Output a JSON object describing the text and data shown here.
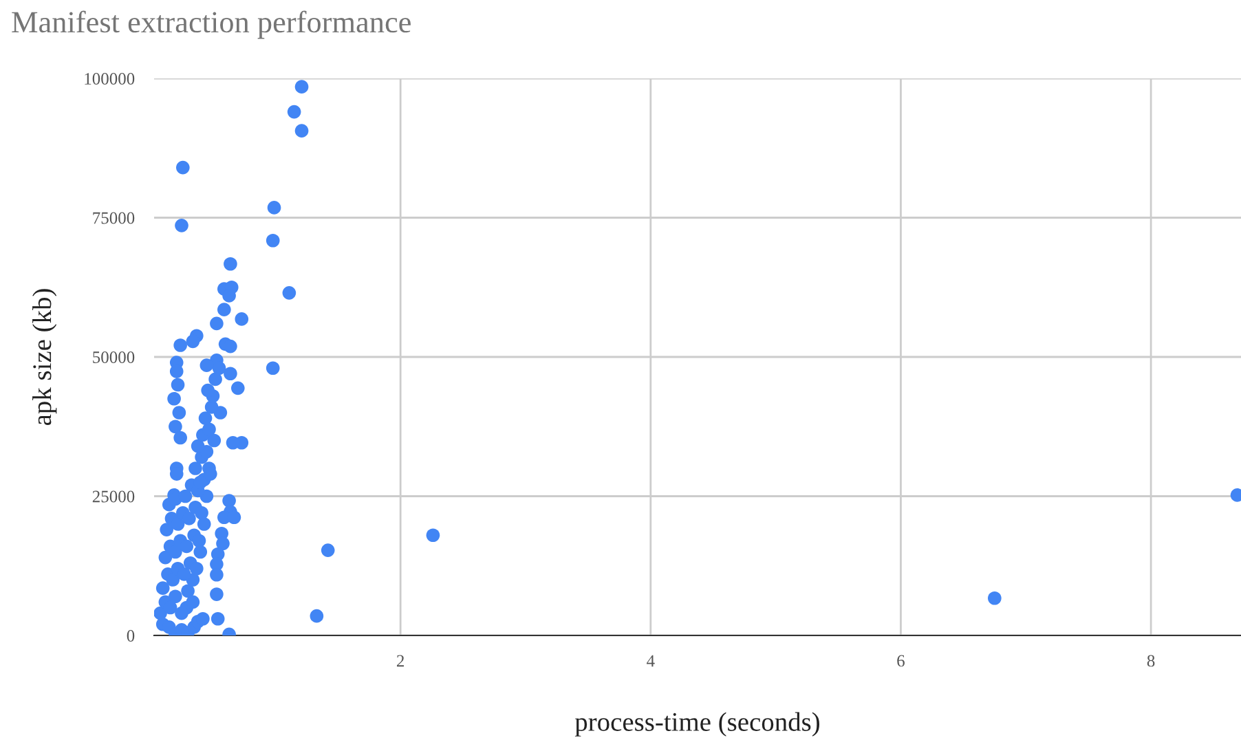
{
  "chart_data": {
    "type": "scatter",
    "title": "Manifest extraction performance",
    "xlabel": "process-time (seconds)",
    "ylabel": "apk size (kb)",
    "xlim": [
      0.03,
      8.72
    ],
    "xticks": [
      2,
      4,
      6,
      8
    ],
    "ylim": [
      0,
      100000
    ],
    "yticks": [
      0,
      25000,
      50000,
      75000,
      100000
    ],
    "grid": true,
    "marker": "circle",
    "legend": false,
    "series": [
      {
        "color": "#4285f4",
        "x": [
          1.21,
          1.15,
          1.21,
          0.26,
          0.25,
          0.99,
          0.98,
          0.64,
          1.11,
          0.73,
          0.98,
          1.42,
          1.33,
          2.26,
          6.75,
          8.69,
          0.73,
          0.66,
          0.7,
          0.24,
          0.37,
          0.34,
          0.59,
          0.65,
          0.63,
          0.59,
          0.53,
          0.6,
          0.64,
          0.53,
          0.64,
          0.21,
          0.21,
          0.22,
          0.19,
          0.23,
          0.2,
          0.24,
          0.21,
          0.21,
          0.19,
          0.56,
          0.51,
          0.47,
          0.45,
          0.43,
          0.4,
          0.34,
          0.29,
          0.63,
          0.64,
          0.59,
          0.67,
          0.57,
          0.58,
          0.54,
          0.53,
          0.53,
          0.53,
          0.54,
          0.63,
          0.1,
          0.15,
          0.2,
          0.25,
          0.3,
          0.35,
          0.38,
          0.42,
          0.08,
          0.12,
          0.16,
          0.2,
          0.25,
          0.3,
          0.34,
          0.1,
          0.14,
          0.18,
          0.22,
          0.27,
          0.32,
          0.37,
          0.12,
          0.16,
          0.2,
          0.24,
          0.29,
          0.35,
          0.39,
          0.13,
          0.17,
          0.22,
          0.26,
          0.31,
          0.36,
          0.41,
          0.15,
          0.2,
          0.28,
          0.33,
          0.38,
          0.43,
          0.36,
          0.41,
          0.45,
          0.38,
          0.42,
          0.47,
          0.44,
          0.49,
          0.5,
          0.46,
          0.52,
          0.55,
          0.45,
          0.48,
          0.4
        ],
        "values": [
          98500,
          94000,
          90600,
          84000,
          73600,
          76800,
          70900,
          66700,
          61500,
          56800,
          48000,
          15300,
          3500,
          18000,
          6700,
          25200,
          34600,
          34600,
          44400,
          52100,
          53800,
          52800,
          62200,
          62500,
          61000,
          58500,
          56000,
          52300,
          51900,
          49400,
          47000,
          49000,
          47400,
          45000,
          42500,
          40000,
          37500,
          35500,
          30000,
          29000,
          25200,
          40000,
          35000,
          30000,
          25000,
          20000,
          15000,
          10000,
          5000,
          24200,
          22200,
          21200,
          21200,
          18300,
          16500,
          14600,
          12800,
          10900,
          7400,
          3000,
          200,
          2000,
          1500,
          300,
          1000,
          500,
          1500,
          2500,
          3000,
          4000,
          6000,
          5000,
          7000,
          4000,
          8000,
          6000,
          8500,
          11000,
          10000,
          12000,
          11000,
          13000,
          12000,
          14000,
          16000,
          15000,
          17000,
          16000,
          18000,
          17000,
          19000,
          21000,
          20000,
          22000,
          21000,
          23000,
          22000,
          23500,
          24500,
          25000,
          27000,
          26000,
          28000,
          30000,
          32000,
          33000,
          34000,
          36000,
          37000,
          39000,
          41000,
          43000,
          44000,
          46000,
          48000,
          48500,
          29000,
          27500
        ]
      }
    ]
  }
}
